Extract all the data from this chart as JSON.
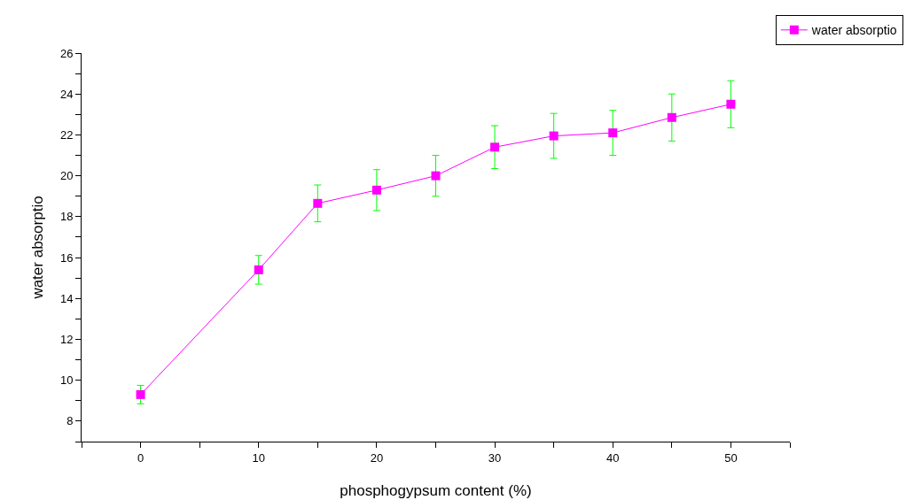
{
  "chart_data": {
    "type": "line",
    "xlabel": "phosphogypsum content (%)",
    "ylabel": "water absorptio",
    "x": [
      0,
      10,
      15,
      20,
      25,
      30,
      35,
      40,
      45,
      50
    ],
    "series": [
      {
        "name": "water absorptio",
        "color": "#ff00ff",
        "values": [
          9.3,
          15.4,
          18.65,
          19.3,
          20.0,
          21.4,
          21.95,
          22.1,
          22.85,
          23.5
        ],
        "errors": [
          0.45,
          0.7,
          0.9,
          1.0,
          1.0,
          1.05,
          1.1,
          1.1,
          1.15,
          1.15
        ]
      }
    ],
    "xlim": [
      -5,
      55
    ],
    "xticks": [
      {
        "value": -5,
        "label": null
      },
      0,
      {
        "value": 5,
        "label": null
      },
      10,
      {
        "value": 15,
        "label": null
      },
      20,
      {
        "value": 25,
        "label": null
      },
      30,
      {
        "value": 35,
        "label": null
      },
      40,
      {
        "value": 45,
        "label": null
      },
      50,
      {
        "value": 55,
        "label": null
      }
    ],
    "ylim": [
      7,
      26
    ],
    "yticks": [
      {
        "value": 7,
        "label": null
      },
      8,
      {
        "value": 9,
        "label": null
      },
      10,
      {
        "value": 11,
        "label": null
      },
      12,
      {
        "value": 13,
        "label": null
      },
      14,
      {
        "value": 15,
        "label": null
      },
      16,
      {
        "value": 17,
        "label": null
      },
      18,
      {
        "value": 19,
        "label": null
      },
      20,
      {
        "value": 21,
        "label": null
      },
      22,
      {
        "value": 23,
        "label": null
      },
      24,
      {
        "value": 25,
        "label": null
      },
      26
    ],
    "grid": false,
    "legend": "top right",
    "marker": "square",
    "line_style": "solid"
  }
}
